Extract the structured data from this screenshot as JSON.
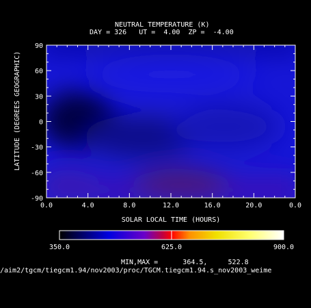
{
  "chart_data": {
    "type": "heatmap",
    "title": "NEUTRAL TEMPERATURE (K)",
    "subtitle": "DAY = 326   UT =  4.00  ZP =  -4.00",
    "xlabel": "SOLAR LOCAL TIME (HOURS)",
    "ylabel": "LATITUDE (DEGREES GEOGRAPHIC)",
    "xlim": [
      0,
      24
    ],
    "ylim": [
      -90,
      90
    ],
    "x_ticks": [
      "0.0",
      "4.0",
      "8.0",
      "12.0",
      "16.0",
      "20.0",
      "0.0"
    ],
    "y_ticks": [
      "90",
      "60",
      "30",
      "0",
      "-30",
      "-60",
      "-90"
    ],
    "x_tick_values": [
      0,
      4,
      8,
      12,
      16,
      20,
      24
    ],
    "y_tick_values": [
      90,
      60,
      30,
      0,
      -30,
      -60,
      -90
    ],
    "colorbar": {
      "min": 350.0,
      "mid": 625.0,
      "max": 900.0,
      "labels": [
        "350.0",
        "625.0",
        "900.0"
      ]
    },
    "minmax_text": "MIN,MAX =      364.5,     522.8",
    "data_min": 364.5,
    "data_max": 522.8,
    "grid": false
  },
  "footer": {
    "path": "/aim2/tgcm/tiegcm1.94/nov2003/proc/TGCM.tiegcm1.94.s_nov2003_weime"
  }
}
